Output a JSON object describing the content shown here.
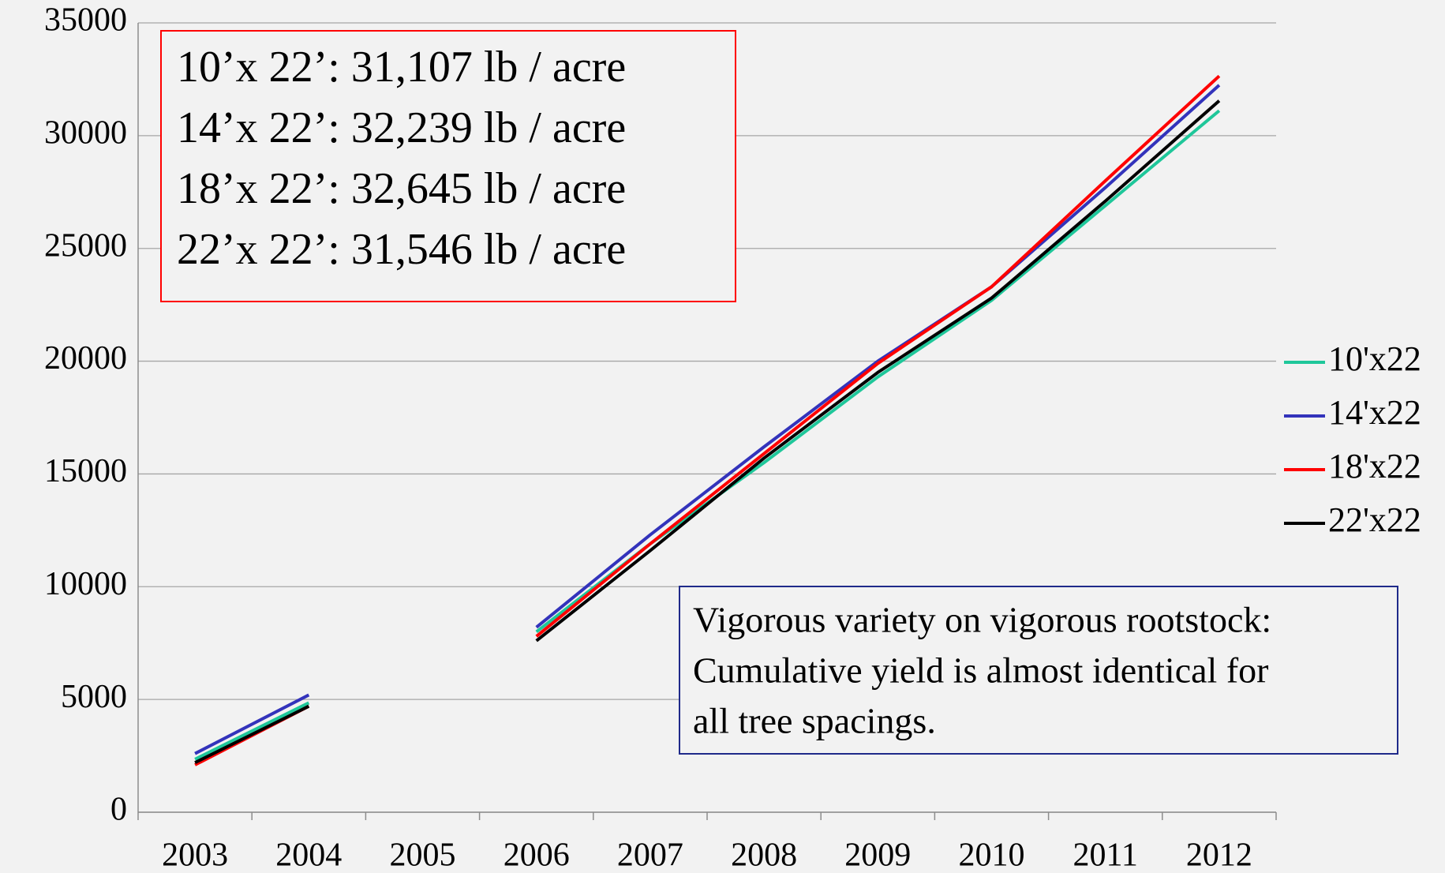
{
  "chart_data": {
    "type": "line",
    "categories": [
      "2003",
      "2004",
      "2005",
      "2006",
      "2007",
      "2008",
      "2009",
      "2010",
      "2011",
      "2012"
    ],
    "series": [
      {
        "name": "10'x22",
        "color": "#1fc79a",
        "values": [
          2350,
          4850,
          null,
          8000,
          11900,
          15500,
          19300,
          22700,
          26900,
          31107
        ]
      },
      {
        "name": "14'x22",
        "color": "#3333bb",
        "values": [
          2600,
          5200,
          null,
          8200,
          12300,
          16200,
          20000,
          23300,
          27700,
          32239
        ]
      },
      {
        "name": "18'x22",
        "color": "#ff0000",
        "values": [
          2100,
          4700,
          null,
          7800,
          11900,
          15900,
          19900,
          23300,
          28000,
          32645
        ]
      },
      {
        "name": "22'x22",
        "color": "#000000",
        "values": [
          2200,
          4700,
          null,
          7600,
          11600,
          15700,
          19500,
          22800,
          27100,
          31546
        ]
      }
    ],
    "ylim": [
      0,
      35000
    ],
    "yticks": [
      0,
      5000,
      10000,
      15000,
      20000,
      25000,
      30000,
      35000
    ],
    "grid": true,
    "legend": "right",
    "annotations": [
      {
        "color": "#ff0000",
        "lines": [
          "10’x 22’:  31,107 lb / acre",
          "14’x 22’:  32,239 lb / acre",
          "18’x 22’:  32,645 lb / acre",
          "22’x 22’:  31,546 lb / acre"
        ]
      },
      {
        "color": "#1f2a8a",
        "lines": [
          "Vigorous variety on vigorous rootstock:",
          "Cumulative yield is almost identical for",
          "all tree spacings."
        ]
      }
    ]
  }
}
